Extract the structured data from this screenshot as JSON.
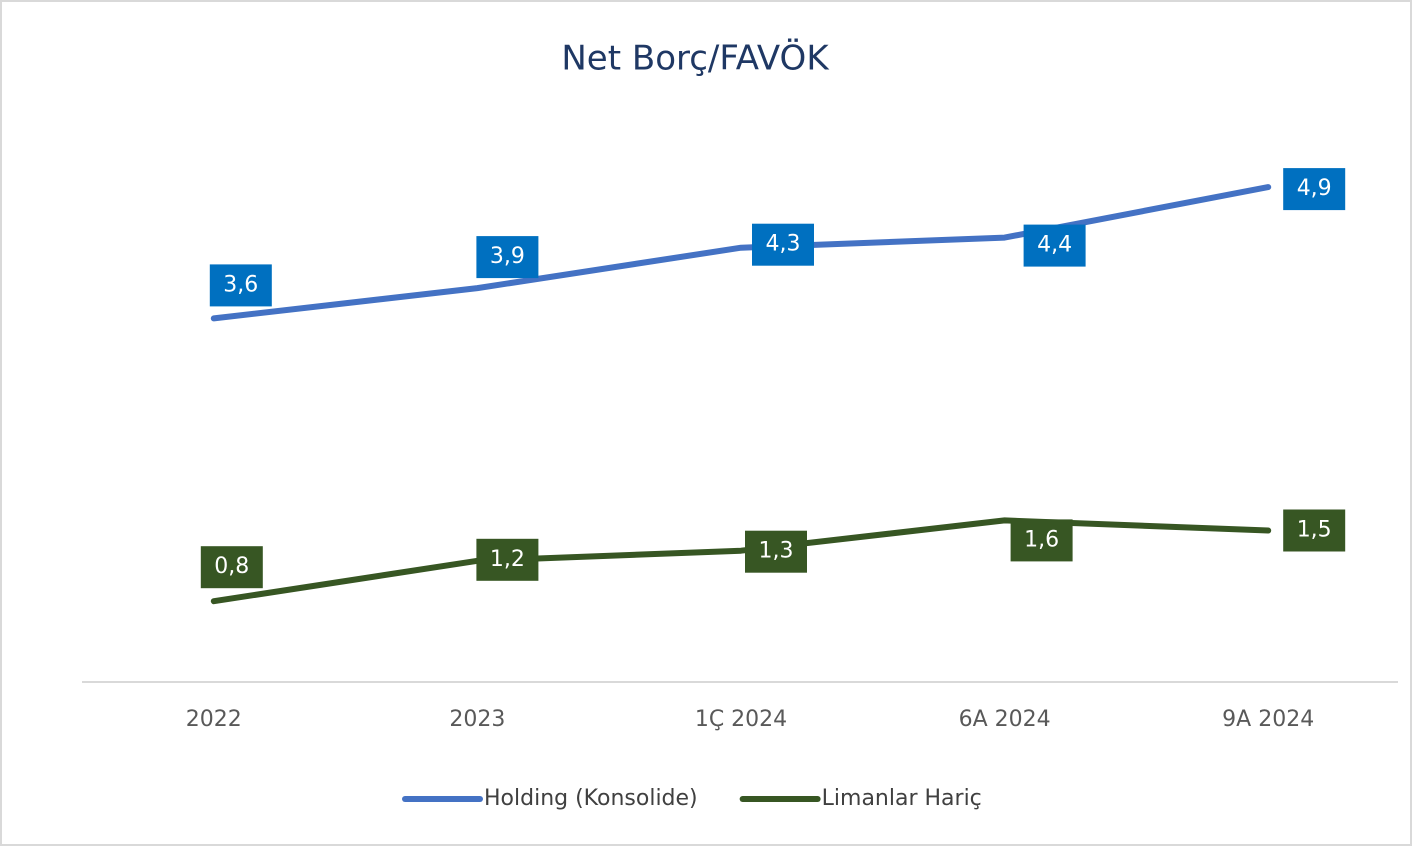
{
  "chart_data": {
    "type": "line",
    "title": "Net Borç/FAVÖK",
    "categories": [
      "2022",
      "2023",
      "1Ç 2024",
      "6A 2024",
      "9A 2024"
    ],
    "series": [
      {
        "name": "Holding (Konsolide)",
        "color": "#4472c4",
        "label_color": "#0070c0",
        "values": [
          3.6,
          3.9,
          4.3,
          4.4,
          4.9
        ],
        "value_labels": [
          "3,6",
          "3,9",
          "4,3",
          "4,4",
          "4,9"
        ]
      },
      {
        "name": "Limanlar Hariç",
        "color": "#375623",
        "label_color": "#375623",
        "values": [
          0.8,
          1.2,
          1.3,
          1.6,
          1.5
        ],
        "value_labels": [
          "0,8",
          "1,2",
          "1,3",
          "1,6",
          "1,5"
        ]
      }
    ],
    "ylim": [
      0,
      6
    ],
    "legend": "bottom"
  }
}
